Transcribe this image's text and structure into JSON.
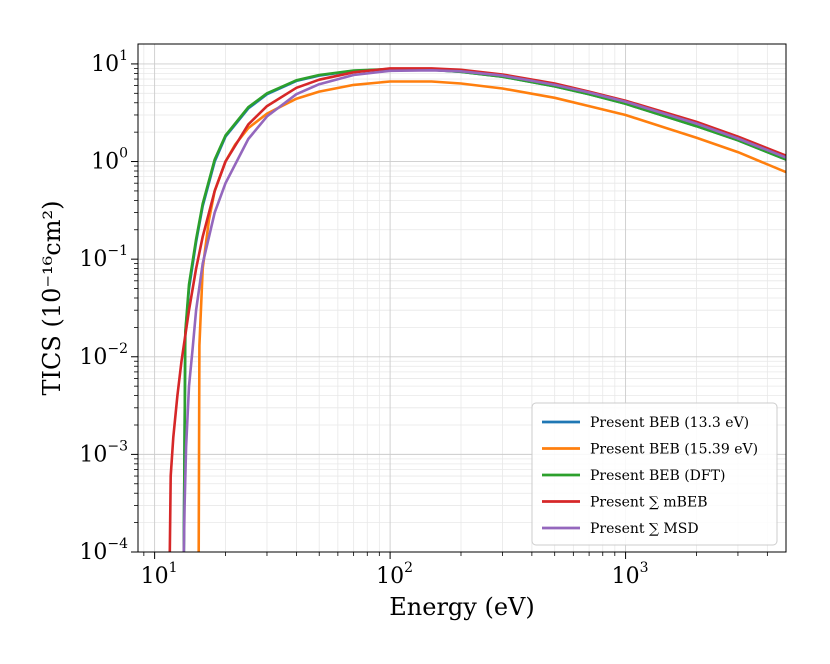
{
  "chart_data": {
    "type": "line",
    "xscale": "log",
    "yscale": "log",
    "xlim": [
      8.5,
      4800
    ],
    "ylim": [
      0.0001,
      16
    ],
    "xlabel": "Energy (eV)",
    "ylabel": "TICS (10⁻¹⁶cm²)",
    "xticks": [
      {
        "value": 10,
        "base": "10",
        "exp": "1"
      },
      {
        "value": 100,
        "base": "10",
        "exp": "2"
      },
      {
        "value": 1000,
        "base": "10",
        "exp": "3"
      }
    ],
    "yticks": [
      {
        "value": 0.0001,
        "base": "10",
        "exp": "−4"
      },
      {
        "value": 0.001,
        "base": "10",
        "exp": "−3"
      },
      {
        "value": 0.01,
        "base": "10",
        "exp": "−2"
      },
      {
        "value": 0.1,
        "base": "10",
        "exp": "−1"
      },
      {
        "value": 1,
        "base": "10",
        "exp": "0"
      },
      {
        "value": 10,
        "base": "10",
        "exp": "1"
      }
    ],
    "grid": true,
    "legend_position": "lower-right",
    "series": [
      {
        "name": "Present BEB (13.3 eV)",
        "color": "#1f77b4",
        "x": [
          13.3,
          13.5,
          14,
          15,
          16,
          18,
          20,
          25,
          30,
          40,
          50,
          70,
          100,
          150,
          200,
          300,
          500,
          700,
          1000,
          2000,
          3000,
          4800
        ],
        "y": [
          0.0001,
          0.017,
          0.05,
          0.15,
          0.35,
          1.0,
          1.8,
          3.5,
          4.9,
          6.7,
          7.6,
          8.5,
          8.8,
          8.7,
          8.3,
          7.4,
          5.9,
          4.9,
          3.9,
          2.3,
          1.65,
          1.05
        ]
      },
      {
        "name": "Present BEB (15.39 eV)",
        "color": "#ff7f0e",
        "x": [
          15.39,
          15.5,
          16,
          17,
          18,
          20,
          22,
          25,
          30,
          40,
          50,
          70,
          100,
          150,
          200,
          300,
          500,
          700,
          1000,
          2000,
          3000,
          4800
        ],
        "y": [
          0.0001,
          0.013,
          0.08,
          0.25,
          0.5,
          1.0,
          1.5,
          2.2,
          3.1,
          4.4,
          5.2,
          6.1,
          6.6,
          6.6,
          6.3,
          5.6,
          4.5,
          3.7,
          3.0,
          1.75,
          1.25,
          0.78
        ]
      },
      {
        "name": "Present BEB (DFT)",
        "color": "#2ca02c",
        "x": [
          13.3,
          13.5,
          14,
          15,
          16,
          18,
          20,
          25,
          30,
          40,
          50,
          70,
          100,
          150,
          200,
          300,
          500,
          700,
          1000,
          2000,
          3000,
          4800
        ],
        "y": [
          0.0001,
          0.018,
          0.055,
          0.16,
          0.37,
          1.05,
          1.85,
          3.6,
          5.0,
          6.8,
          7.7,
          8.55,
          8.85,
          8.7,
          8.3,
          7.4,
          5.9,
          4.9,
          3.9,
          2.3,
          1.65,
          1.05
        ]
      },
      {
        "name": "Present ∑ mBEB",
        "color": "#d62728",
        "x": [
          11.6,
          11.7,
          12,
          12.5,
          13,
          14,
          15,
          16,
          18,
          20,
          25,
          30,
          40,
          50,
          70,
          100,
          150,
          200,
          300,
          500,
          700,
          1000,
          2000,
          3000,
          4800
        ],
        "y": [
          0.0001,
          0.0006,
          0.0015,
          0.004,
          0.009,
          0.03,
          0.08,
          0.17,
          0.5,
          1.0,
          2.4,
          3.7,
          5.7,
          6.9,
          8.2,
          9.0,
          9.0,
          8.7,
          7.8,
          6.3,
          5.2,
          4.2,
          2.55,
          1.8,
          1.15
        ]
      },
      {
        "name": "Present ∑ MSD",
        "color": "#9467bd",
        "x": [
          13.3,
          13.4,
          13.6,
          14,
          14.5,
          15,
          16,
          18,
          20,
          25,
          30,
          40,
          50,
          70,
          100,
          150,
          200,
          300,
          500,
          700,
          1000,
          2000,
          3000,
          4800
        ],
        "y": [
          0.0001,
          0.0003,
          0.0012,
          0.005,
          0.012,
          0.03,
          0.09,
          0.3,
          0.6,
          1.7,
          2.9,
          4.9,
          6.2,
          7.7,
          8.5,
          8.6,
          8.4,
          7.6,
          6.1,
          5.1,
          4.1,
          2.45,
          1.72,
          1.1
        ]
      }
    ]
  }
}
